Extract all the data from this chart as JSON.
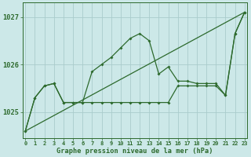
{
  "title": "Graphe pression niveau de la mer (hPa)",
  "x_hours": [
    0,
    1,
    2,
    3,
    4,
    5,
    6,
    7,
    8,
    9,
    10,
    11,
    12,
    13,
    14,
    15,
    16,
    17,
    18,
    19,
    20,
    21,
    22,
    23
  ],
  "pressure_main": [
    1024.6,
    1025.3,
    1025.55,
    1025.6,
    1025.2,
    1025.2,
    1025.2,
    1025.85,
    1026.0,
    1026.15,
    1026.35,
    1026.55,
    1026.65,
    1026.5,
    1025.8,
    1025.95,
    1025.65,
    1025.65,
    1025.6,
    1025.6,
    1025.6,
    1025.35,
    1026.65,
    1027.1
  ],
  "pressure_flat": [
    1024.6,
    1025.3,
    1025.55,
    1025.6,
    1025.2,
    1025.2,
    1025.2,
    1025.2,
    1025.2,
    1025.2,
    1025.2,
    1025.2,
    1025.2,
    1025.2,
    1025.2,
    1025.2,
    1025.55,
    1025.55,
    1025.55,
    1025.55,
    1025.55,
    1025.35,
    1026.65,
    1027.1
  ],
  "trend_x": [
    0,
    23
  ],
  "trend_y": [
    1024.6,
    1027.1
  ],
  "line_color": "#2d6a2d",
  "bg_color": "#cce8e8",
  "grid_color": "#aacccc",
  "ylim_min": 1024.45,
  "ylim_max": 1027.3,
  "xlim_min": -0.3,
  "xlim_max": 23.3,
  "yticks": [
    1025,
    1026,
    1027
  ],
  "x_hours_labels": [
    "0",
    "1",
    "2",
    "3",
    "4",
    "5",
    "6",
    "7",
    "8",
    "9",
    "10",
    "11",
    "12",
    "13",
    "14",
    "15",
    "16",
    "17",
    "18",
    "19",
    "20",
    "21",
    "22",
    "23"
  ]
}
